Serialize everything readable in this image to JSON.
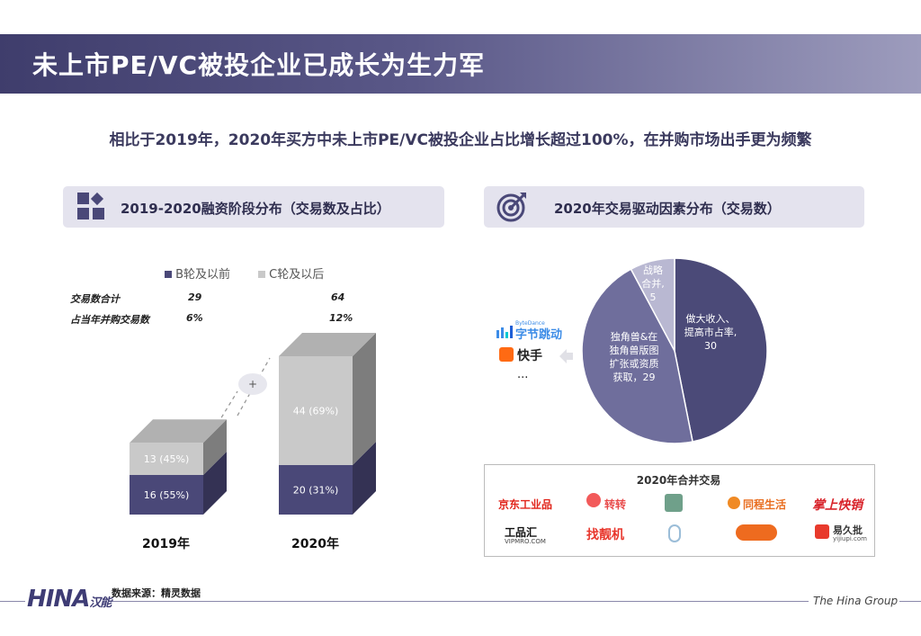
{
  "header": {
    "title": "未上市PE/VC被投企业已成长为生力军",
    "subtitle": "相比于2019年，2020年买方中未上市PE/VC被投企业占比增长超过100%，在并购市场出手更为频繁"
  },
  "left_panel": {
    "title": "2019-2020融资阶段分布（交易数及占比）",
    "legend": [
      "B轮及以前",
      "C轮及以后"
    ],
    "table": {
      "row1_label": "交易数合计",
      "row2_label": "占当年并购交易数",
      "y2019_total": "29",
      "y2020_total": "64",
      "y2019_share": "6%",
      "y2020_share": "12%"
    },
    "plus_sign": "+"
  },
  "right_panel": {
    "title": "2020年交易驱动因素分布（交易数）",
    "acquirers": [
      "字节跳动",
      "快手",
      "..."
    ],
    "bytedance_small": "ByteDance",
    "deals_title": "2020年合并交易",
    "deal_brands": [
      "京东工业品",
      "转转",
      "",
      "同程生活",
      "掌上快销",
      "工品汇",
      "找靓机",
      "",
      "",
      "易久批"
    ],
    "deal_brand_subs": [
      "VIPMRO.COM",
      "yijiupi.com"
    ]
  },
  "chart_data": [
    {
      "type": "bar",
      "stacked": true,
      "title": "2019-2020融资阶段分布（交易数及占比）",
      "categories": [
        "2019年",
        "2020年"
      ],
      "series": [
        {
          "name": "B轮及以前",
          "values": [
            16,
            20
          ],
          "labels": [
            "16 (55%)",
            "20 (31%)"
          ],
          "color": "#4a4878"
        },
        {
          "name": "C轮及以后",
          "values": [
            13,
            44
          ],
          "labels": [
            "13 (45%)",
            "44 (69%)"
          ],
          "color": "#c9c9c9"
        }
      ]
    },
    {
      "type": "pie",
      "title": "2020年交易驱动因素分布（交易数）",
      "slices": [
        {
          "label": "做大收入、提高市占率，30",
          "lines": [
            "做大收入、",
            "提高市占率,",
            "30"
          ],
          "value": 30,
          "color": "#4b4a78"
        },
        {
          "label": "独角兽&在独角兽版图扩张或资质获取，29",
          "lines": [
            "独角兽&在",
            "独角兽版图",
            "扩张或资质",
            "获取，29"
          ],
          "value": 29,
          "color": "#6f6e9c"
        },
        {
          "label": "战略合并，5",
          "lines": [
            "战略",
            "合并,",
            "5"
          ],
          "value": 5,
          "color": "#b9b8d2"
        }
      ]
    }
  ],
  "footer": {
    "source": "数据来源：精灵数据",
    "group": "The Hina Group",
    "logo_text": "HINA",
    "logo_cn": "汉能"
  }
}
